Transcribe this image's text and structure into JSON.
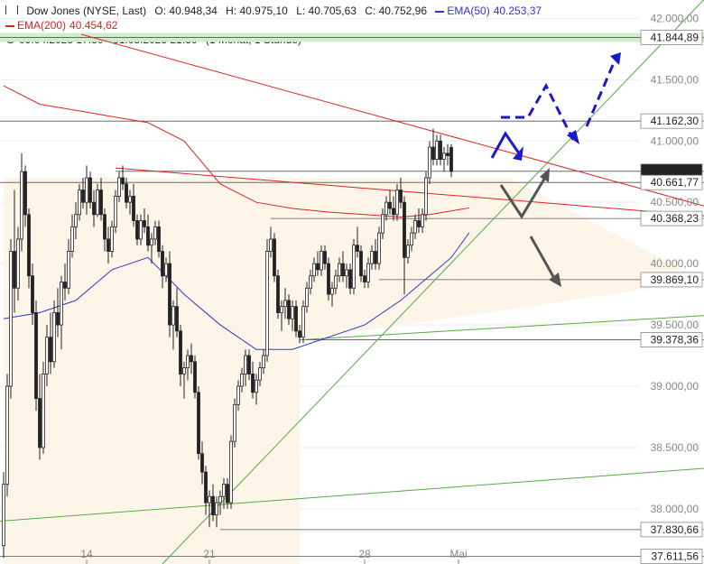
{
  "legend": {
    "symbol_name": "Dow Jones (NYSE, Last)",
    "open": "O: 40.948,34",
    "high": "H: 40.975,10",
    "low": "L: 40.705,63",
    "close": "C: 40.752,96",
    "ema50_label": "EMA(50)",
    "ema50_value": "40.253,37",
    "ema200_label": "EMA(200)",
    "ema200_value": "40.454,62",
    "period": "09.04.2025 17:30 - 01.05.2025 21:30",
    "interval": "(1 Monat, 1 Stunde)"
  },
  "colors": {
    "ema50": "#3333cc",
    "ema200": "#dd2222",
    "trendline": "#55aa44",
    "resistance": "#dd2222",
    "arrow_blue": "#1a1acc",
    "arrow_gray": "#555555",
    "zone": "#fdf6e8",
    "band": "#cfeec9"
  },
  "chart_data": {
    "type": "candlestick",
    "y_range": [
      37550,
      42150
    ],
    "y_ticks": [
      "42.000,00",
      "41.500,00",
      "41.000,00",
      "40.500,00",
      "40.000,00",
      "39.500,00",
      "39.000,00",
      "38.500,00",
      "38.000,00"
    ],
    "y_tick_values": [
      42000,
      41500,
      41000,
      40500,
      40000,
      39500,
      39000,
      38500,
      38000
    ],
    "x_ticks": [
      {
        "label": "14",
        "index": 23
      },
      {
        "label": "21",
        "index": 57
      },
      {
        "label": "28",
        "index": 100
      },
      {
        "label": "Mai",
        "index": 126
      }
    ],
    "levels": [
      {
        "label": "41.844,89",
        "value": 41844.89,
        "band": true
      },
      {
        "label": "41.162,30",
        "value": 41162.3
      },
      {
        "label": "40.752,96",
        "value": 40752.96,
        "current": true
      },
      {
        "label": "40.661,77",
        "value": 40661.77
      },
      {
        "label": "40.368,23",
        "value": 40368.23
      },
      {
        "label": "39.869,10",
        "value": 39869.1
      },
      {
        "label": "39.378,36",
        "value": 39378.36
      },
      {
        "label": "37.830,66",
        "value": 37830.66
      },
      {
        "label": "37.611,56",
        "value": 37611.56
      }
    ],
    "candles": [
      [
        37700,
        38300,
        37600,
        38200
      ],
      [
        38200,
        39100,
        38100,
        39000
      ],
      [
        39000,
        40200,
        38900,
        40100
      ],
      [
        40100,
        40600,
        39600,
        39800
      ],
      [
        39800,
        40300,
        39700,
        40200
      ],
      [
        40200,
        40900,
        40100,
        40750
      ],
      [
        40750,
        40800,
        40300,
        40400
      ],
      [
        40400,
        40450,
        39800,
        39900
      ],
      [
        39900,
        40000,
        39500,
        39600
      ],
      [
        39600,
        39700,
        38800,
        38900
      ],
      [
        38900,
        39100,
        38400,
        38500
      ],
      [
        38500,
        39200,
        38450,
        39100
      ],
      [
        39100,
        39500,
        39000,
        39400
      ],
      [
        39400,
        39600,
        39100,
        39200
      ],
      [
        39200,
        39700,
        39150,
        39600
      ],
      [
        39600,
        39800,
        39400,
        39500
      ],
      [
        39500,
        39900,
        39300,
        39850
      ],
      [
        39850,
        40000,
        39700,
        39800
      ],
      [
        39800,
        40200,
        39750,
        40100
      ],
      [
        40100,
        40400,
        40050,
        40300
      ],
      [
        40300,
        40500,
        40200,
        40400
      ],
      [
        40400,
        40650,
        40350,
        40600
      ],
      [
        40600,
        40700,
        40450,
        40500
      ],
      [
        40500,
        40800,
        40400,
        40700
      ],
      [
        40700,
        40750,
        40450,
        40500
      ],
      [
        40500,
        40600,
        40300,
        40400
      ],
      [
        40400,
        40650,
        40380,
        40600
      ],
      [
        40600,
        40700,
        40350,
        40400
      ],
      [
        40400,
        40450,
        40100,
        40200
      ],
      [
        40200,
        40300,
        40000,
        40100
      ],
      [
        40100,
        40350,
        40050,
        40300
      ],
      [
        40300,
        40600,
        40250,
        40550
      ],
      [
        40550,
        40750,
        40500,
        40700
      ],
      [
        40700,
        40800,
        40600,
        40650
      ],
      [
        40650,
        40700,
        40450,
        40500
      ],
      [
        40500,
        40600,
        40400,
        40550
      ],
      [
        40550,
        40650,
        40300,
        40350
      ],
      [
        40350,
        40400,
        40150,
        40200
      ],
      [
        40200,
        40400,
        40150,
        40350
      ],
      [
        40350,
        40450,
        40250,
        40300
      ],
      [
        40300,
        40400,
        40100,
        40150
      ],
      [
        40150,
        40250,
        40000,
        40200
      ],
      [
        40200,
        40350,
        40150,
        40300
      ],
      [
        40300,
        40350,
        40050,
        40100
      ],
      [
        40100,
        40150,
        39800,
        39900
      ],
      [
        39900,
        40050,
        39850,
        40000
      ],
      [
        40000,
        40100,
        39400,
        39500
      ],
      [
        39500,
        39700,
        39300,
        39650
      ],
      [
        39650,
        39800,
        39400,
        39450
      ],
      [
        39450,
        39500,
        39000,
        39100
      ],
      [
        39100,
        39200,
        38900,
        39150
      ],
      [
        39150,
        39300,
        39050,
        39250
      ],
      [
        39250,
        39350,
        39100,
        39200
      ],
      [
        39200,
        39250,
        38900,
        38950
      ],
      [
        38950,
        39000,
        38400,
        38450
      ],
      [
        38450,
        38550,
        38200,
        38300
      ],
      [
        38300,
        38350,
        37950,
        38050
      ],
      [
        38050,
        38150,
        37850,
        38100
      ],
      [
        38100,
        38200,
        37900,
        37950
      ],
      [
        37950,
        38100,
        37850,
        38050
      ],
      [
        38050,
        38150,
        37950,
        38100
      ],
      [
        38100,
        38250,
        38000,
        38200
      ],
      [
        38200,
        38250,
        38000,
        38050
      ],
      [
        38050,
        38600,
        38000,
        38550
      ],
      [
        38550,
        38900,
        38500,
        38850
      ],
      [
        38850,
        39050,
        38800,
        39000
      ],
      [
        39000,
        39150,
        38950,
        39100
      ],
      [
        39100,
        39300,
        39000,
        39250
      ],
      [
        39250,
        39300,
        39050,
        39100
      ],
      [
        39100,
        39200,
        38900,
        38950
      ],
      [
        38950,
        39100,
        38850,
        39050
      ],
      [
        39050,
        39200,
        39000,
        39150
      ],
      [
        39150,
        39300,
        39100,
        39250
      ],
      [
        39250,
        40200,
        39200,
        40100
      ],
      [
        40100,
        40300,
        40050,
        40200
      ],
      [
        40200,
        40250,
        39850,
        39900
      ],
      [
        39900,
        39950,
        39550,
        39600
      ],
      [
        39600,
        39700,
        39450,
        39650
      ],
      [
        39650,
        39800,
        39550,
        39700
      ],
      [
        39700,
        39750,
        39500,
        39550
      ],
      [
        39550,
        39700,
        39450,
        39650
      ],
      [
        39650,
        39700,
        39400,
        39450
      ],
      [
        39450,
        39500,
        39350,
        39400
      ],
      [
        39400,
        39700,
        39350,
        39650
      ],
      [
        39650,
        39850,
        39600,
        39800
      ],
      [
        39800,
        39950,
        39750,
        39900
      ],
      [
        39900,
        40050,
        39850,
        40000
      ],
      [
        40000,
        40100,
        39900,
        39950
      ],
      [
        39950,
        40150,
        39900,
        40100
      ],
      [
        40100,
        40150,
        39950,
        40000
      ],
      [
        40000,
        40050,
        39700,
        39750
      ],
      [
        39750,
        39850,
        39650,
        39800
      ],
      [
        39800,
        39950,
        39750,
        39900
      ],
      [
        39900,
        40050,
        39850,
        40000
      ],
      [
        40000,
        40100,
        39850,
        39900
      ],
      [
        39900,
        40000,
        39800,
        39950
      ],
      [
        39950,
        40000,
        39750,
        39800
      ],
      [
        39800,
        40200,
        39750,
        40150
      ],
      [
        40150,
        40300,
        40050,
        40100
      ],
      [
        40100,
        40150,
        39850,
        39900
      ],
      [
        39900,
        39950,
        39800,
        39850
      ],
      [
        39850,
        40050,
        39800,
        40000
      ],
      [
        40000,
        40150,
        39950,
        40100
      ],
      [
        40100,
        40200,
        39950,
        40000
      ],
      [
        40000,
        40300,
        39950,
        40250
      ],
      [
        40250,
        40450,
        40200,
        40400
      ],
      [
        40400,
        40550,
        40350,
        40500
      ],
      [
        40500,
        40600,
        40400,
        40450
      ],
      [
        40450,
        40550,
        40350,
        40400
      ],
      [
        40400,
        40650,
        40350,
        40600
      ],
      [
        40600,
        40700,
        40450,
        40500
      ],
      [
        40500,
        40550,
        39750,
        40050
      ],
      [
        40050,
        40200,
        40000,
        40150
      ],
      [
        40150,
        40300,
        40100,
        40250
      ],
      [
        40250,
        40400,
        40200,
        40350
      ],
      [
        40350,
        40450,
        40250,
        40300
      ],
      [
        40300,
        40450,
        40250,
        40400
      ],
      [
        40400,
        40750,
        40350,
        40700
      ],
      [
        40700,
        41000,
        40650,
        40950
      ],
      [
        40950,
        41100,
        40800,
        40850
      ],
      [
        40850,
        41050,
        40800,
        41000
      ],
      [
        41000,
        41050,
        40800,
        40850
      ],
      [
        40850,
        40950,
        40750,
        40900
      ],
      [
        40900,
        40975,
        40800,
        40880
      ],
      [
        40948,
        40975,
        40705,
        40753
      ]
    ],
    "ema50": [
      [
        0,
        39550
      ],
      [
        10,
        39600
      ],
      [
        20,
        39700
      ],
      [
        30,
        39950
      ],
      [
        40,
        40050
      ],
      [
        50,
        39750
      ],
      [
        60,
        39500
      ],
      [
        70,
        39300
      ],
      [
        80,
        39300
      ],
      [
        90,
        39400
      ],
      [
        100,
        39500
      ],
      [
        110,
        39700
      ],
      [
        118,
        39900
      ],
      [
        124,
        40050
      ],
      [
        129,
        40253
      ]
    ],
    "ema200": [
      [
        0,
        41450
      ],
      [
        10,
        41300
      ],
      [
        20,
        41250
      ],
      [
        30,
        41200
      ],
      [
        40,
        41150
      ],
      [
        50,
        41000
      ],
      [
        60,
        40650
      ],
      [
        70,
        40500
      ],
      [
        80,
        40450
      ],
      [
        90,
        40420
      ],
      [
        100,
        40400
      ],
      [
        110,
        40380
      ],
      [
        118,
        40400
      ],
      [
        124,
        40430
      ],
      [
        129,
        40454
      ]
    ]
  }
}
